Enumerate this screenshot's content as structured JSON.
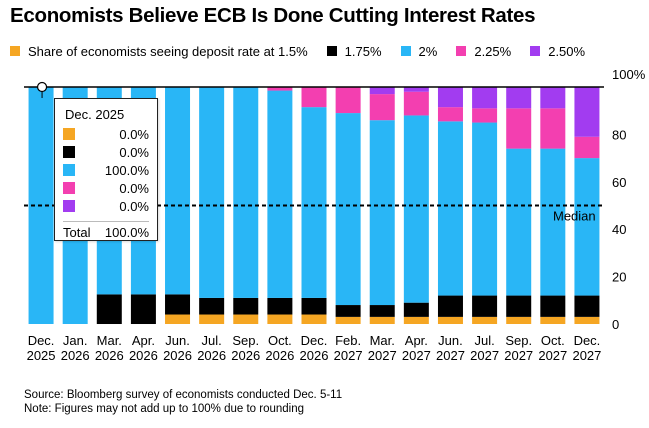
{
  "title": "Economists Believe ECB Is Done Cutting Interest Rates",
  "legend": [
    {
      "label": "Share of economists seeing deposit rate at 1.5%",
      "color": "#f5a623"
    },
    {
      "label": "1.75%",
      "color": "#000000"
    },
    {
      "label": "2%",
      "color": "#29b6f6"
    },
    {
      "label": "2.25%",
      "color": "#f33fb0"
    },
    {
      "label": "2.50%",
      "color": "#a23cf0"
    }
  ],
  "tooltip": {
    "heading": "Dec. 2025",
    "rows": [
      "0.0%",
      "0.0%",
      "100.0%",
      "0.0%",
      "0.0%"
    ],
    "total_label": "Total",
    "total_value": "100.0%"
  },
  "median_label": "Median",
  "footer": {
    "source": "Source: Bloomberg survey of economists conducted Dec. 5-11",
    "note": "Note: Figures may not add up to 100% due to rounding"
  },
  "chart_data": {
    "type": "bar",
    "stacked": true,
    "categories": [
      [
        "Dec.",
        "2025"
      ],
      [
        "Jan.",
        "2026"
      ],
      [
        "Mar.",
        "2026"
      ],
      [
        "Apr.",
        "2026"
      ],
      [
        "Jun.",
        "2026"
      ],
      [
        "Jul.",
        "2026"
      ],
      [
        "Sep.",
        "2026"
      ],
      [
        "Oct.",
        "2026"
      ],
      [
        "Dec.",
        "2026"
      ],
      [
        "Feb.",
        "2027"
      ],
      [
        "Mar.",
        "2027"
      ],
      [
        "Apr.",
        "2027"
      ],
      [
        "Jun.",
        "2027"
      ],
      [
        "Jul.",
        "2027"
      ],
      [
        "Sep.",
        "2027"
      ],
      [
        "Oct.",
        "2027"
      ],
      [
        "Dec.",
        "2027"
      ]
    ],
    "series": [
      {
        "name": "1.5%",
        "color": "#f5a623",
        "values": [
          0,
          0,
          0,
          0,
          4,
          4,
          4,
          4,
          4,
          3,
          3,
          3,
          3,
          3,
          3,
          3,
          3
        ]
      },
      {
        "name": "1.75%",
        "color": "#000000",
        "values": [
          0,
          0,
          12.5,
          12.5,
          8.5,
          7,
          7,
          7,
          7,
          5,
          5,
          6,
          9,
          9,
          9,
          9,
          9
        ]
      },
      {
        "name": "2%",
        "color": "#29b6f6",
        "values": [
          100,
          100,
          87.5,
          87.5,
          87.5,
          89,
          89,
          87.5,
          80.5,
          81,
          78,
          79,
          73.5,
          73,
          62,
          62,
          58
        ]
      },
      {
        "name": "2.25%",
        "color": "#f33fb0",
        "values": [
          0,
          0,
          0,
          0,
          0,
          0,
          0,
          1.5,
          8.5,
          11,
          11,
          10,
          6,
          6,
          17,
          17,
          9
        ]
      },
      {
        "name": "2.50%",
        "color": "#a23cf0",
        "values": [
          0,
          0,
          0,
          0,
          0,
          0,
          0,
          0,
          0,
          0,
          3,
          2,
          8.5,
          9,
          9,
          9,
          21
        ]
      }
    ],
    "ylim": [
      0,
      100
    ],
    "yticks": [
      0,
      20,
      40,
      60,
      80,
      100
    ],
    "ytick_labels": [
      "0",
      "20",
      "40",
      "60",
      "80",
      "100%"
    ],
    "median_value": 50,
    "highlighted_category": 0
  }
}
